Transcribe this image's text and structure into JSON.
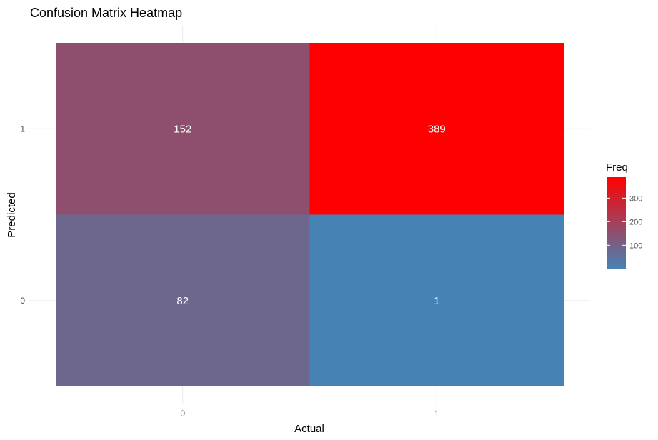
{
  "chart_data": {
    "type": "heatmap",
    "title": "Confusion Matrix Heatmap",
    "xlabel": "Actual",
    "ylabel": "Predicted",
    "x_categories": [
      "0",
      "1"
    ],
    "y_categories": [
      "0",
      "1"
    ],
    "cells": [
      {
        "actual": "0",
        "predicted": "1",
        "value": 152,
        "label": "152"
      },
      {
        "actual": "1",
        "predicted": "1",
        "value": 389,
        "label": "389"
      },
      {
        "actual": "0",
        "predicted": "0",
        "value": 82,
        "label": "82"
      },
      {
        "actual": "1",
        "predicted": "0",
        "value": 1,
        "label": "1"
      }
    ],
    "color_scale": {
      "low": "#4682B4",
      "high": "#FF0000",
      "min": 1,
      "max": 389
    },
    "legend": {
      "title": "Freq",
      "placement": "right",
      "ticks": [
        {
          "value": 100,
          "label": "100"
        },
        {
          "value": 200,
          "label": "200"
        },
        {
          "value": 300,
          "label": "300"
        }
      ]
    },
    "grid": true
  }
}
